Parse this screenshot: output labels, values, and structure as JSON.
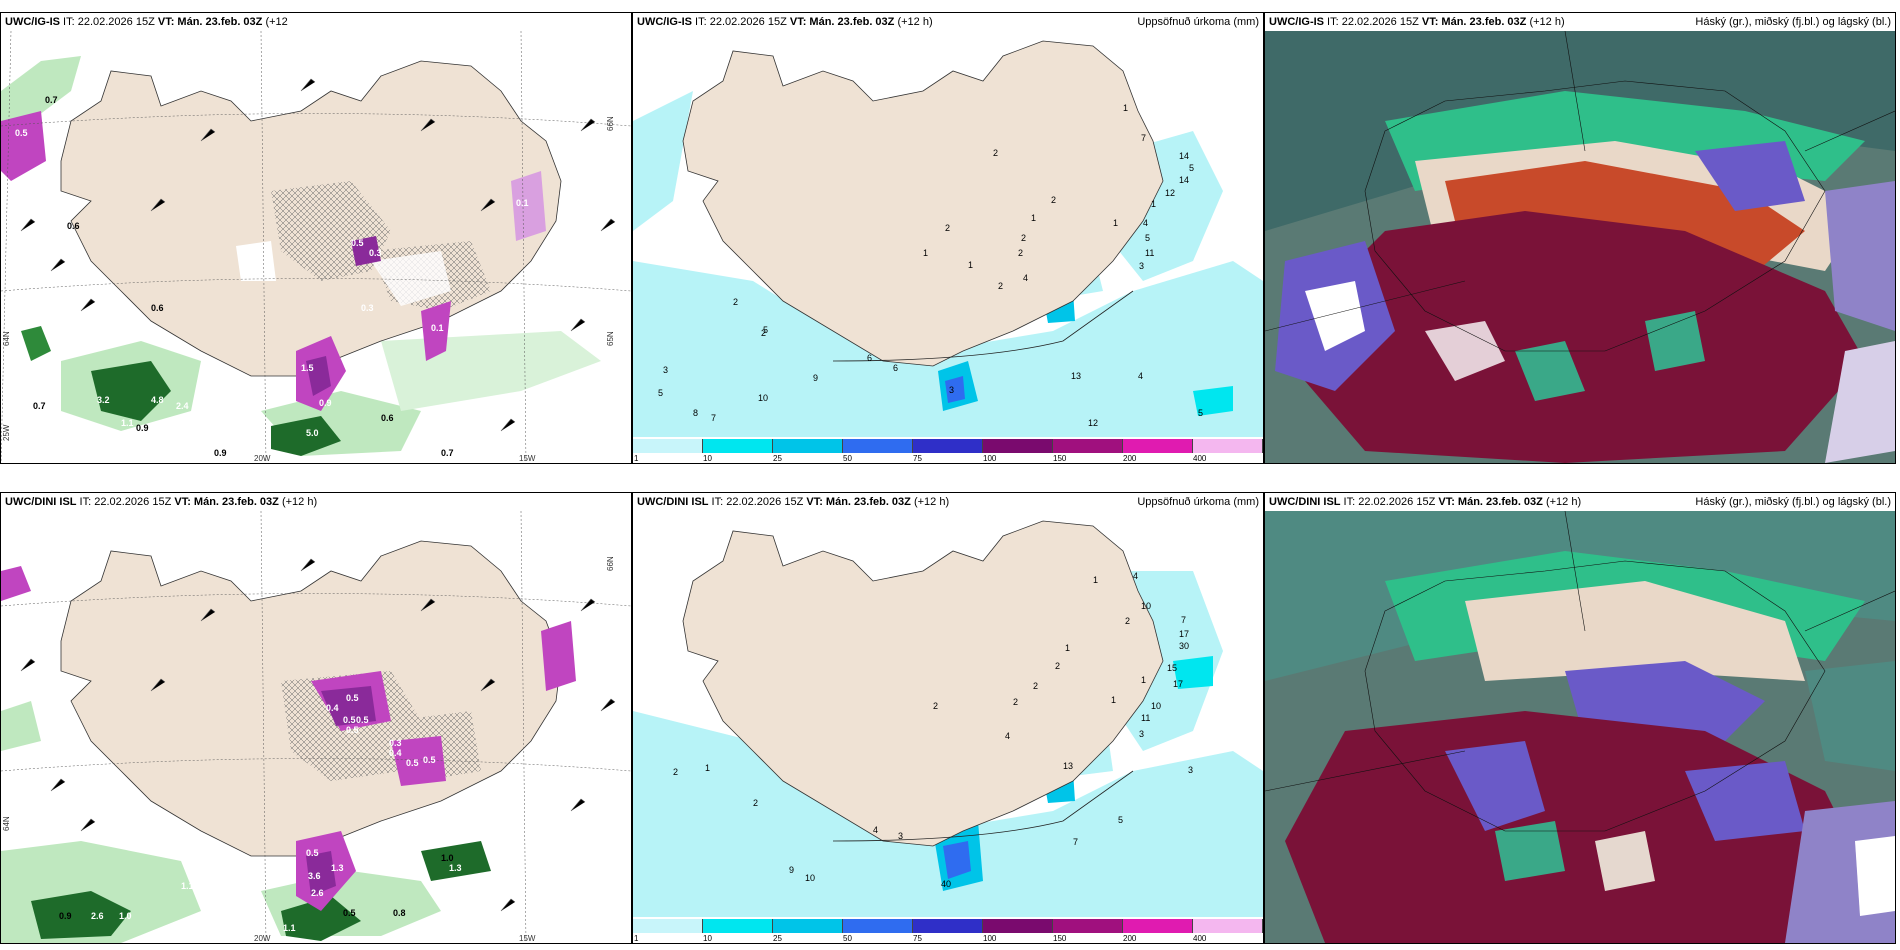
{
  "panels": [
    {
      "id": "p1",
      "header": {
        "model": "UWC/IG-IS",
        "run": " IT: 22.02.2026 15Z ",
        "vt": "VT: Mán. 23.feb. 03Z",
        "lead": " (+12",
        "lead2": "h)",
        "right": ""
      },
      "labels": [
        "0.7",
        "0.5",
        "0.6",
        "0.6",
        "3.2",
        "0.7",
        "1.5",
        "1.6",
        "1.1",
        "1.6",
        "4.8",
        "2.4",
        "0.9",
        "0.9",
        "0.6",
        "5.0",
        "0.9",
        "0.7",
        "0.5",
        "0.3",
        "0.3",
        "0.1",
        "0.1",
        "0.1",
        "1.5"
      ],
      "ticks": {
        "lon": [
          "20W",
          "15W"
        ],
        "lat": [
          "66N",
          "65N",
          "64N"
        ],
        "left": [
          "25W"
        ]
      }
    },
    {
      "id": "p2",
      "header": {
        "model": "UWC/IG-IS",
        "run": " IT: 22.02.2026 15Z ",
        "vt": "VT: Mán. 23.feb. 03Z",
        "lead": " (+12 h)",
        "lead2": "",
        "right": "Uppsöfnuð úrkoma (mm)"
      },
      "labels": [
        "1",
        "7",
        "2",
        "14",
        "5",
        "14",
        "12",
        "1",
        "2",
        "1",
        "2",
        "2",
        "1",
        "4",
        "5",
        "11",
        "2",
        "1",
        "1",
        "3",
        "4",
        "2",
        "2",
        "5",
        "3",
        "2",
        "9",
        "6",
        "6",
        "10",
        "5",
        "13",
        "4",
        "8",
        "7",
        "5",
        "12",
        "3"
      ]
    },
    {
      "id": "p3",
      "header": {
        "model": "UWC/IG-IS",
        "run": " IT: 22.02.2026 15Z ",
        "vt": "VT: Mán. 23.feb. 03Z",
        "lead": " (+12 h)",
        "lead2": "",
        "right": "Háský (gr.), miðský (fj.bl.) og lágský (bl.)"
      }
    },
    {
      "id": "p4",
      "header": {
        "model": "UWC/DINI ISL",
        "run": " IT: 22.02.2026 15Z ",
        "vt": "VT: Mán. 23.feb. 03Z",
        "lead": " (+12 h)",
        "lead2": "",
        "right": ""
      },
      "labels": [
        "0.5",
        "0.4",
        "0.5",
        "0.5",
        "0.5",
        "0.3",
        "0.4",
        "0.5",
        "0.5",
        "0.5",
        "3.6",
        "1.3",
        "2.6",
        "0.5",
        "0.8",
        "1.0",
        "0.9",
        "1.1",
        "1.0",
        "2.6",
        "1.3",
        "1.1"
      ],
      "ticks": {
        "lon": [
          "20W",
          "15W"
        ],
        "lat": [
          "66N",
          "64N"
        ]
      }
    },
    {
      "id": "p5",
      "header": {
        "model": "UWC/DINI ISL",
        "run": " IT: 22.02.2026 15Z ",
        "vt": "VT: Mán. 23.feb. 03Z",
        "lead": " (+12 h)",
        "lead2": "",
        "right": "Uppsöfnuð úrkoma (mm)"
      },
      "labels": [
        "4",
        "1",
        "10",
        "2",
        "7",
        "17",
        "30",
        "1",
        "2",
        "15",
        "17",
        "1",
        "2",
        "1",
        "10",
        "2",
        "2",
        "11",
        "3",
        "4",
        "13",
        "3",
        "2",
        "1",
        "2",
        "4",
        "3",
        "5",
        "7",
        "9",
        "10",
        "40"
      ]
    },
    {
      "id": "p6",
      "header": {
        "model": "UWC/DINI ISL",
        "run": " IT: 22.02.2026 15Z ",
        "vt": "VT: Mán. 23.feb. 03Z",
        "lead": " (+12 h)",
        "lead2": "",
        "right": "Háský (gr.), miðský (fj.bl.) og lágský (bl.)"
      }
    }
  ],
  "colorbar": {
    "labels": [
      "1",
      "10",
      "25",
      "50",
      "75",
      "100",
      "150",
      "200",
      "400"
    ],
    "colors": [
      "#c8f5fa",
      "#00e6ef",
      "#00c4e8",
      "#2f6cf0",
      "#2f2fc8",
      "#7a0a6e",
      "#a0107e",
      "#e01bb0",
      "#f4b7ef"
    ]
  },
  "colors": {
    "land": "#efe2d4",
    "precip_light": "#b7f3f7",
    "green_light": "#bfe8bf",
    "green_dark": "#1e6b2a",
    "purple": "#c045c0",
    "maroon": "#7a1238",
    "cloud_blue": "#6a5ac8",
    "cloud_teal": "#3aa888"
  }
}
